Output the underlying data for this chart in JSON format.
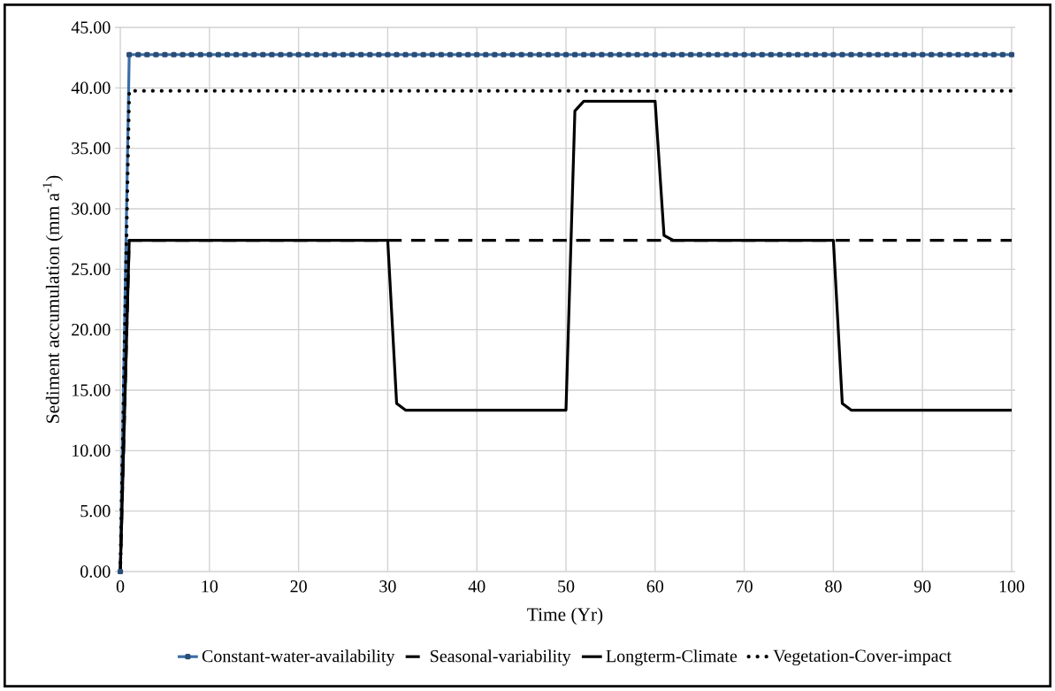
{
  "chart_data": {
    "type": "line",
    "xlabel": "Time (Yr)",
    "ylabel": "Sediment accumulation (mm a$^{-1}$)",
    "x": [
      0,
      1,
      2,
      3,
      4,
      5,
      6,
      7,
      8,
      9,
      10,
      11,
      12,
      13,
      14,
      15,
      16,
      17,
      18,
      19,
      20,
      21,
      22,
      23,
      24,
      25,
      26,
      27,
      28,
      29,
      30,
      31,
      32,
      33,
      34,
      35,
      36,
      37,
      38,
      39,
      40,
      41,
      42,
      43,
      44,
      45,
      46,
      47,
      48,
      49,
      50,
      51,
      52,
      53,
      54,
      55,
      56,
      57,
      58,
      59,
      60,
      61,
      62,
      63,
      64,
      65,
      66,
      67,
      68,
      69,
      70,
      71,
      72,
      73,
      74,
      75,
      76,
      77,
      78,
      79,
      80,
      81,
      82,
      83,
      84,
      85,
      86,
      87,
      88,
      89,
      90,
      91,
      92,
      93,
      94,
      95,
      96,
      97,
      98,
      99,
      100
    ],
    "series": [
      {
        "name": "Constant-water-availability",
        "color": "#3b6ea8",
        "line_style": "solid",
        "marker": "square",
        "values": [
          0,
          42.75,
          42.75,
          42.75,
          42.75,
          42.75,
          42.75,
          42.75,
          42.75,
          42.75,
          42.75,
          42.75,
          42.75,
          42.75,
          42.75,
          42.75,
          42.75,
          42.75,
          42.75,
          42.75,
          42.75,
          42.75,
          42.75,
          42.75,
          42.75,
          42.75,
          42.75,
          42.75,
          42.75,
          42.75,
          42.75,
          42.75,
          42.75,
          42.75,
          42.75,
          42.75,
          42.75,
          42.75,
          42.75,
          42.75,
          42.75,
          42.75,
          42.75,
          42.75,
          42.75,
          42.75,
          42.75,
          42.75,
          42.75,
          42.75,
          42.75,
          42.75,
          42.75,
          42.75,
          42.75,
          42.75,
          42.75,
          42.75,
          42.75,
          42.75,
          42.75,
          42.75,
          42.75,
          42.75,
          42.75,
          42.75,
          42.75,
          42.75,
          42.75,
          42.75,
          42.75,
          42.75,
          42.75,
          42.75,
          42.75,
          42.75,
          42.75,
          42.75,
          42.75,
          42.75,
          42.75,
          42.75,
          42.75,
          42.75,
          42.75,
          42.75,
          42.75,
          42.75,
          42.75,
          42.75,
          42.75,
          42.75,
          42.75,
          42.75,
          42.75,
          42.75,
          42.75,
          42.75,
          42.75,
          42.75,
          42.75
        ]
      },
      {
        "name": "Seasonal-variability",
        "color": "#000000",
        "line_style": "dashed",
        "marker": "none",
        "x": [
          0,
          1,
          100
        ],
        "values": [
          0,
          27.4,
          27.4
        ]
      },
      {
        "name": "Longterm-Climate",
        "color": "#000000",
        "line_style": "solid",
        "marker": "none",
        "x": [
          0,
          1,
          30,
          31,
          32,
          50,
          51,
          52,
          60,
          61,
          62,
          80,
          81,
          82,
          100
        ],
        "values": [
          0,
          27.4,
          27.4,
          13.9,
          13.35,
          13.35,
          38.1,
          38.9,
          38.9,
          27.8,
          27.4,
          27.4,
          13.9,
          13.35,
          13.35
        ]
      },
      {
        "name": "Vegetation-Cover-impact",
        "color": "#000000",
        "line_style": "dotted",
        "marker": "none",
        "x": [
          0,
          1,
          100
        ],
        "values": [
          0,
          39.75,
          39.75
        ]
      }
    ],
    "xlim": [
      -0.6,
      100.4
    ],
    "ylim": [
      0,
      45
    ],
    "xticks": [
      0,
      10,
      20,
      30,
      40,
      50,
      60,
      70,
      80,
      90,
      100
    ],
    "yticks": [
      {
        "value": 0,
        "label": "0.00"
      },
      {
        "value": 5,
        "label": "5.00"
      },
      {
        "value": 10,
        "label": "10.00"
      },
      {
        "value": 15,
        "label": "15.00"
      },
      {
        "value": 20,
        "label": "20.00"
      },
      {
        "value": 25,
        "label": "25.00"
      },
      {
        "value": 30,
        "label": "30.00"
      },
      {
        "value": 35,
        "label": "35.00"
      },
      {
        "value": 40,
        "label": "40.00"
      },
      {
        "value": 45,
        "label": "45.00"
      }
    ],
    "grid": true,
    "legend": "bottom"
  }
}
